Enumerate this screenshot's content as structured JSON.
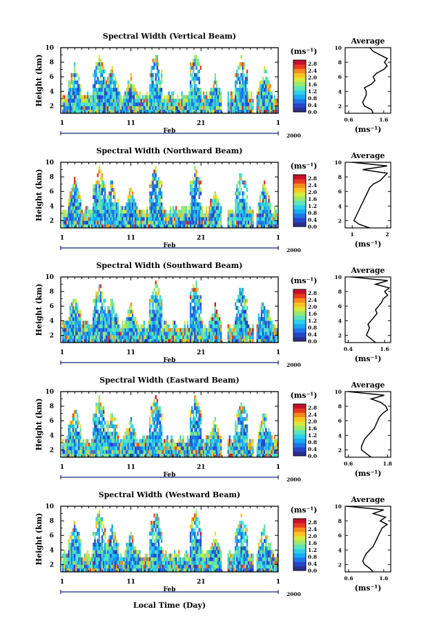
{
  "figure": {
    "xlabel": "Local Time (Day)",
    "month_label": "Feb",
    "year_label": "2000",
    "colorbar_unit": "(ms⁻¹)",
    "colorbar_ticks": [
      "0.0",
      "0.4",
      "0.8",
      "1.2",
      "1.6",
      "2.0",
      "2.4",
      "2.8"
    ],
    "colormap": [
      "#2b2f8f",
      "#2646c7",
      "#1f74e6",
      "#1aa9f0",
      "#2fd0e8",
      "#5de3b8",
      "#9be86f",
      "#d8e83a",
      "#f8c423",
      "#f58a1e",
      "#e83a1f",
      "#c8102e"
    ],
    "height_ticks": [
      "2",
      "4",
      "6",
      "8",
      "10"
    ],
    "day_ticks": [
      "1",
      "11",
      "21",
      "1"
    ],
    "average_title": "Average",
    "average_xlabel": "(ms⁻¹)"
  },
  "chart_data": [
    {
      "type": "heatmap",
      "title": "Spectral Width (Vertical Beam)",
      "xlabel": "Local Time (Day)",
      "ylabel": "Height (km)",
      "xlim": [
        1,
        32
      ],
      "ylim": [
        1,
        10
      ],
      "clim": [
        0.0,
        3.0
      ],
      "profile": {
        "title": "Average",
        "xlabel": "(ms⁻¹)",
        "xticks": [
          "0.6",
          "1.6"
        ],
        "xlim": [
          0.5,
          1.8
        ],
        "height": [
          1.0,
          1.5,
          2.0,
          2.5,
          3.0,
          3.5,
          4.0,
          4.5,
          5.0,
          5.5,
          6.0,
          6.5,
          7.0,
          7.5,
          8.0,
          8.5,
          9.0,
          9.5,
          10.0
        ],
        "values": [
          1.3,
          1.25,
          1.05,
          1.0,
          1.05,
          1.1,
          1.1,
          1.05,
          1.25,
          1.35,
          1.3,
          1.4,
          1.6,
          1.7,
          1.62,
          1.7,
          1.5,
          1.3,
          1.2
        ]
      }
    },
    {
      "type": "heatmap",
      "title": "Spectral Width (Northward Beam)",
      "xlabel": "Local Time (Day)",
      "ylabel": "Height (km)",
      "xlim": [
        1,
        32
      ],
      "ylim": [
        1,
        10
      ],
      "clim": [
        0.0,
        3.0
      ],
      "profile": {
        "title": "Average",
        "xlabel": "(ms⁻¹)",
        "xticks": [
          "1",
          "2"
        ],
        "xlim": [
          0.8,
          2.1
        ],
        "height": [
          1.0,
          1.5,
          2.0,
          2.5,
          3.0,
          3.5,
          4.0,
          4.5,
          5.0,
          5.5,
          6.0,
          6.5,
          7.0,
          7.5,
          8.0,
          8.5,
          9.0,
          9.5,
          10.0
        ],
        "values": [
          1.5,
          1.2,
          1.05,
          1.1,
          1.15,
          1.2,
          1.25,
          1.3,
          1.35,
          1.4,
          1.45,
          1.5,
          1.6,
          1.8,
          1.9,
          2.0,
          1.3,
          2.0,
          1.0
        ]
      }
    },
    {
      "type": "heatmap",
      "title": "Spectral Width (Southward Beam)",
      "xlabel": "Local Time (Day)",
      "ylabel": "Height (km)",
      "xlim": [
        1,
        32
      ],
      "ylim": [
        1,
        10
      ],
      "clim": [
        0.0,
        3.0
      ],
      "profile": {
        "title": "Average",
        "xlabel": "(ms⁻¹)",
        "xticks": [
          "0.4",
          "1.6"
        ],
        "xlim": [
          0.3,
          1.8
        ],
        "height": [
          1.0,
          1.5,
          2.0,
          2.5,
          3.0,
          3.5,
          4.0,
          4.5,
          5.0,
          5.5,
          6.0,
          6.5,
          7.0,
          7.5,
          8.0,
          8.5,
          9.0,
          9.5,
          10.0
        ],
        "values": [
          1.3,
          1.15,
          1.0,
          1.05,
          1.1,
          1.05,
          1.15,
          1.25,
          1.35,
          1.3,
          1.4,
          1.5,
          1.55,
          1.7,
          1.6,
          1.75,
          1.3,
          1.7,
          0.5
        ]
      }
    },
    {
      "type": "heatmap",
      "title": "Spectral Width (Eastward Beam)",
      "xlabel": "Local Time (Day)",
      "ylabel": "Height (km)",
      "xlim": [
        1,
        32
      ],
      "ylim": [
        1,
        10
      ],
      "clim": [
        0.0,
        3.0
      ],
      "profile": {
        "title": "Average",
        "xlabel": "(ms⁻¹)",
        "xticks": [
          "0.6",
          "1.8"
        ],
        "xlim": [
          0.5,
          1.9
        ],
        "height": [
          1.0,
          1.5,
          2.0,
          2.5,
          3.0,
          3.5,
          4.0,
          4.5,
          5.0,
          5.5,
          6.0,
          6.5,
          7.0,
          7.5,
          8.0,
          8.5,
          9.0,
          9.5,
          10.0
        ],
        "values": [
          1.3,
          1.15,
          1.0,
          1.0,
          1.05,
          1.1,
          1.2,
          1.3,
          1.4,
          1.45,
          1.5,
          1.55,
          1.65,
          1.8,
          1.75,
          1.6,
          1.3,
          1.7,
          0.6
        ]
      }
    },
    {
      "type": "heatmap",
      "title": "Spectral Width (Westward Beam)",
      "xlabel": "Local Time (Day)",
      "ylabel": "Height (km)",
      "xlim": [
        1,
        32
      ],
      "ylim": [
        1,
        10
      ],
      "clim": [
        0.0,
        3.0
      ],
      "profile": {
        "title": "Average",
        "xlabel": "(ms⁻¹)",
        "xticks": [
          "0.6",
          "1.6"
        ],
        "xlim": [
          0.5,
          1.8
        ],
        "height": [
          1.0,
          1.5,
          2.0,
          2.5,
          3.0,
          3.5,
          4.0,
          4.5,
          5.0,
          5.5,
          6.0,
          6.5,
          7.0,
          7.5,
          8.0,
          8.5,
          9.0,
          9.5,
          10.0
        ],
        "values": [
          1.3,
          1.2,
          1.05,
          1.0,
          1.05,
          1.1,
          1.2,
          1.3,
          1.35,
          1.4,
          1.45,
          1.5,
          1.55,
          1.7,
          1.5,
          1.65,
          1.3,
          1.6,
          0.55
        ]
      }
    }
  ]
}
